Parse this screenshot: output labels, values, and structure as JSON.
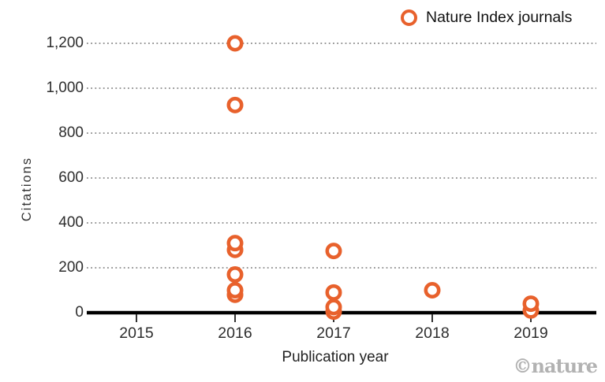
{
  "legend": {
    "label": "Nature Index journals",
    "marker_color": "#E8612C"
  },
  "watermark": "©nature",
  "colors": {
    "accent": "#E8612C",
    "grid": "#8a8a8a",
    "axis": "#000000",
    "tick_text": "#2e2e2e",
    "watermark": "#b2b2b2",
    "background": "#ffffff"
  },
  "chart_data": {
    "type": "scatter",
    "title": "",
    "xlabel": "Publication year",
    "ylabel": "Citations",
    "xlim": [
      2014.5,
      2019.65
    ],
    "ylim": [
      0,
      1260
    ],
    "x_ticks": [
      2015,
      2016,
      2017,
      2018,
      2019
    ],
    "x_tick_labels": [
      "2015",
      "2016",
      "2017",
      "2018",
      "2019"
    ],
    "y_ticks": [
      0,
      200,
      400,
      600,
      800,
      1000,
      1200
    ],
    "y_tick_labels": [
      "0",
      "200",
      "400",
      "600",
      "800",
      "1,000",
      "1,200"
    ],
    "grid": "horizontal-dotted",
    "legend_position": "top-right",
    "series": [
      {
        "name": "Nature Index journals",
        "marker": "open-circle",
        "color": "#E8612C",
        "points": [
          [
            2016,
            1200
          ],
          [
            2016,
            925
          ],
          [
            2016,
            310
          ],
          [
            2016,
            280
          ],
          [
            2016,
            170
          ],
          [
            2016,
            100
          ],
          [
            2016,
            80
          ],
          [
            2017,
            275
          ],
          [
            2017,
            90
          ],
          [
            2017,
            25
          ],
          [
            2017,
            5
          ],
          [
            2018,
            100
          ],
          [
            2019,
            40
          ],
          [
            2019,
            10
          ]
        ]
      }
    ]
  }
}
